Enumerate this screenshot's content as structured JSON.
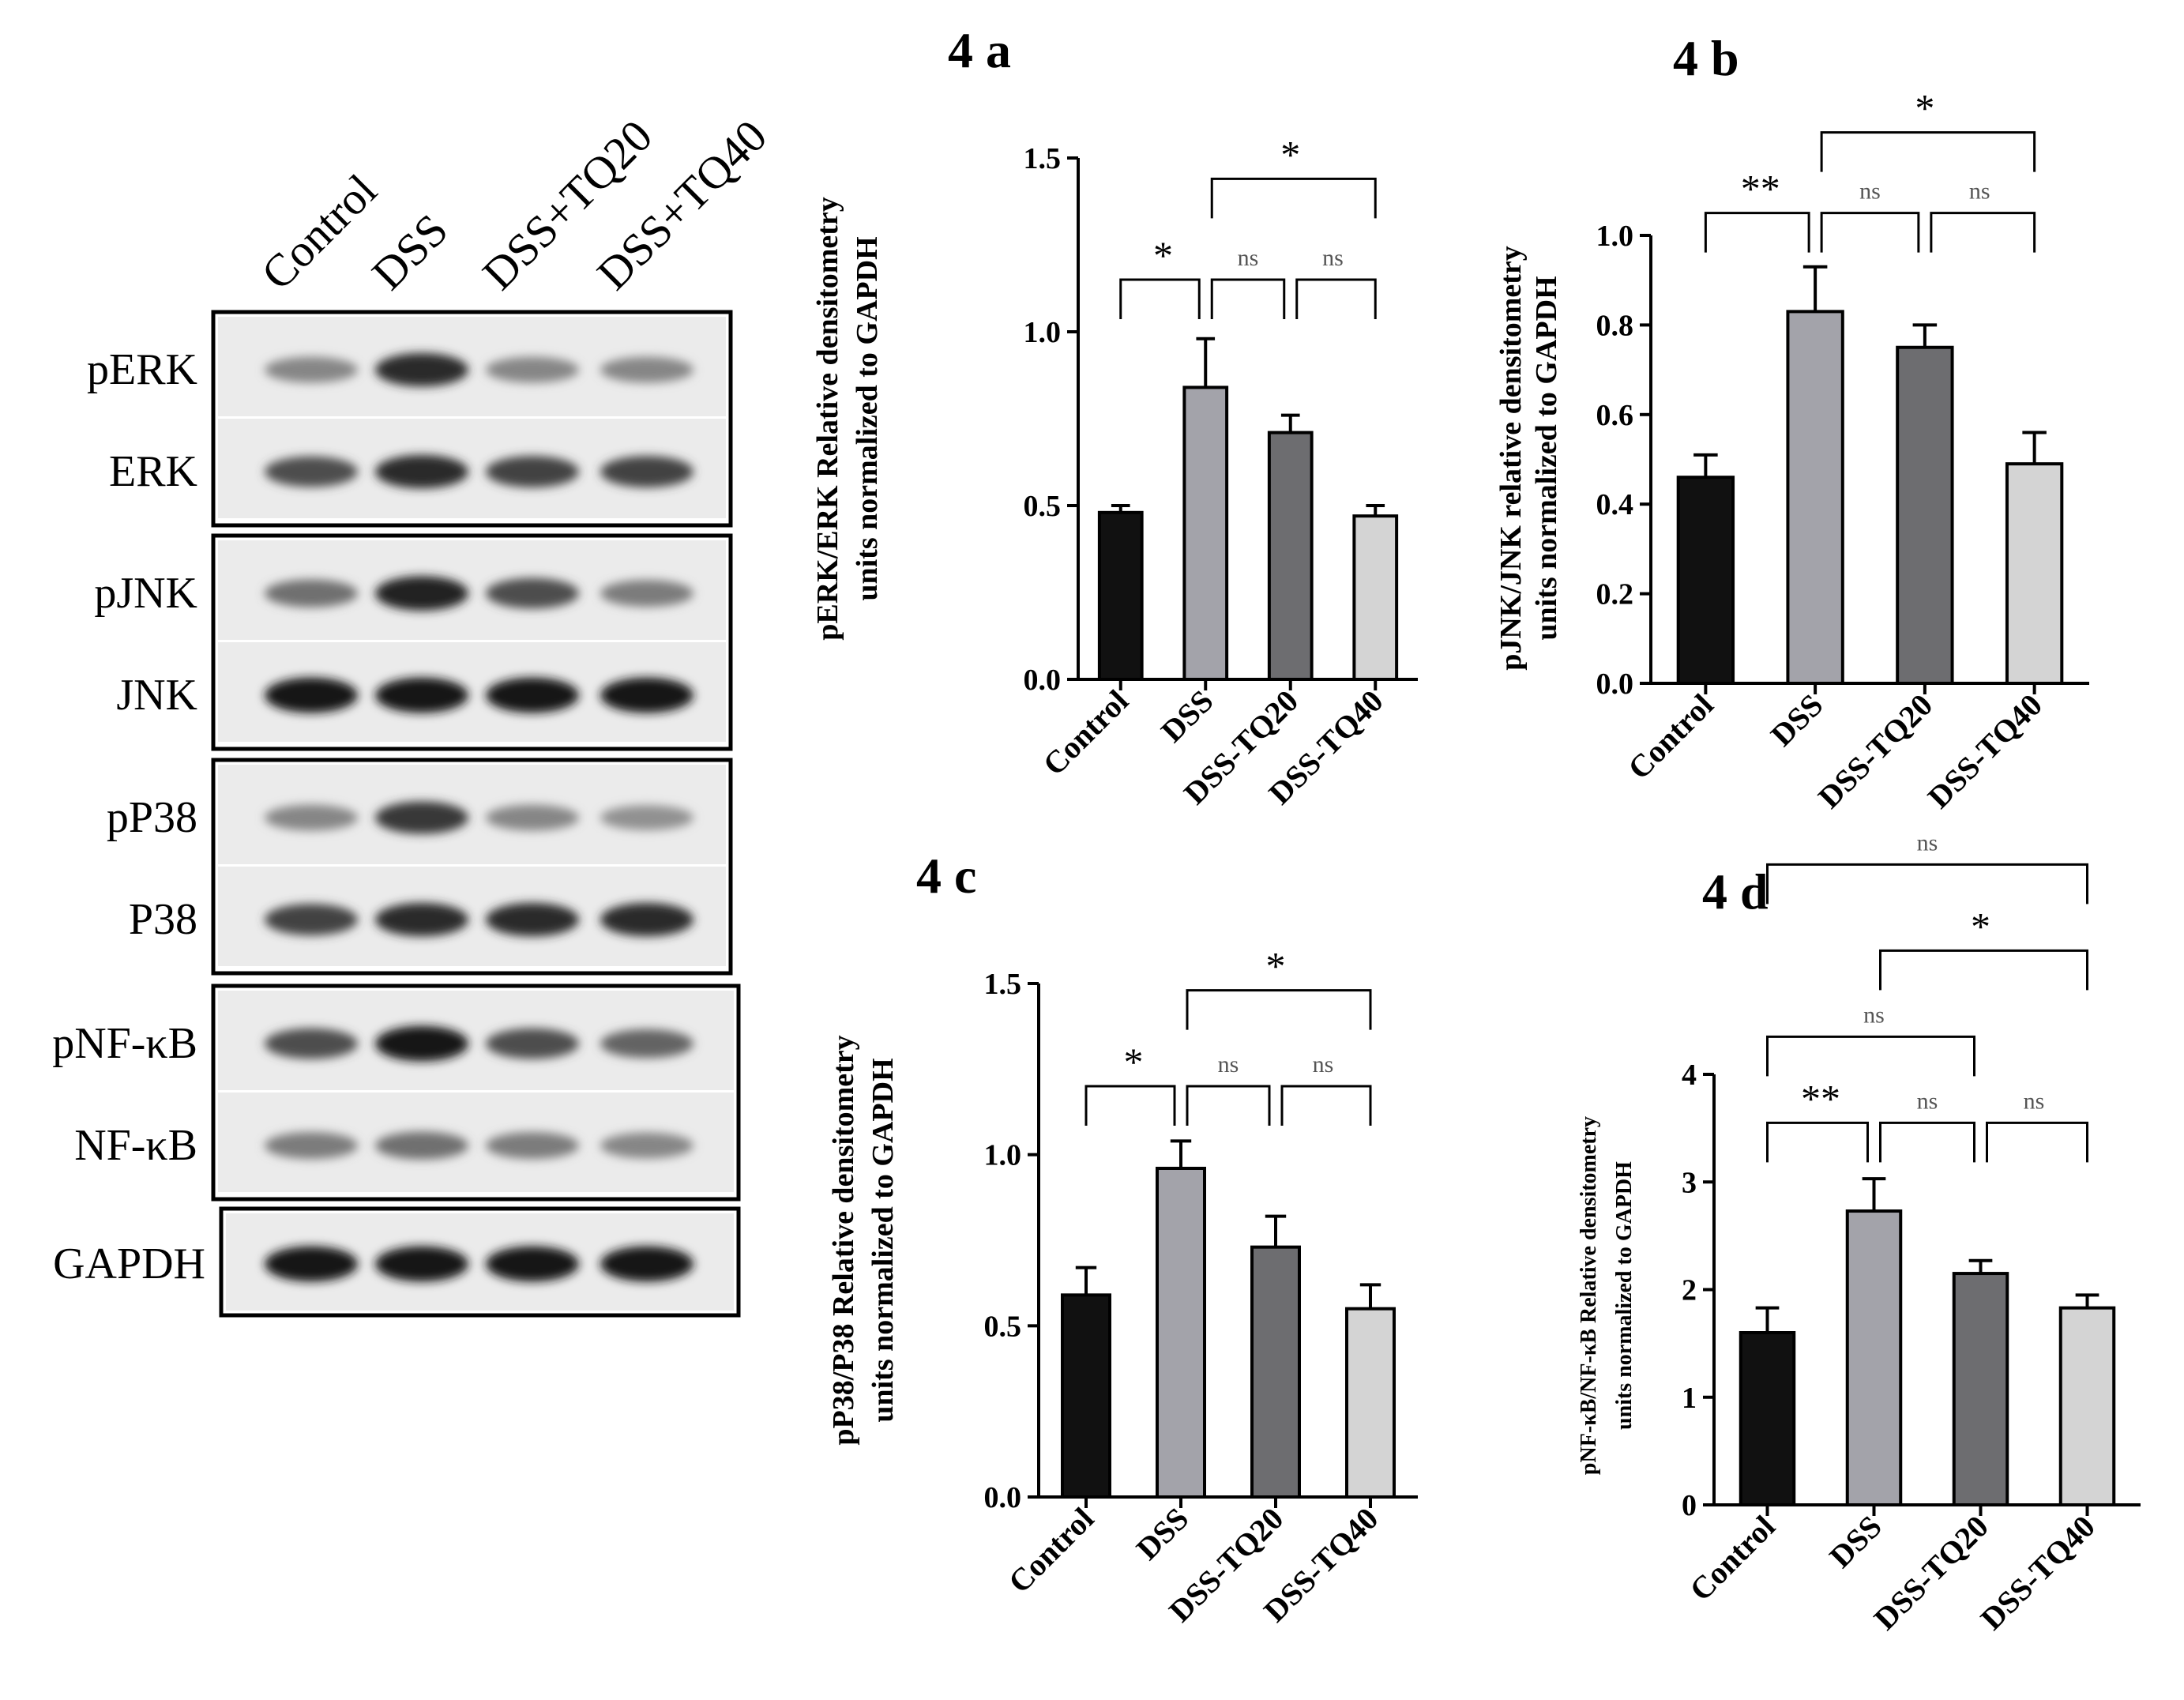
{
  "blot": {
    "lane_labels": [
      "Control",
      "DSS",
      "DSS+TQ20",
      "DSS+TQ40"
    ],
    "rows": [
      {
        "label": "pERK",
        "intensity": [
          0.45,
          0.85,
          0.45,
          0.45
        ]
      },
      {
        "label": "ERK",
        "intensity": [
          0.7,
          0.85,
          0.75,
          0.75
        ]
      },
      {
        "label": "pJNK",
        "intensity": [
          0.55,
          0.9,
          0.7,
          0.5
        ]
      },
      {
        "label": "JNK",
        "intensity": [
          0.95,
          0.95,
          0.95,
          0.95
        ]
      },
      {
        "label": "pP38",
        "intensity": [
          0.45,
          0.8,
          0.45,
          0.4
        ]
      },
      {
        "label": "P38",
        "intensity": [
          0.75,
          0.85,
          0.85,
          0.85
        ]
      },
      {
        "label": "pNF-κB",
        "intensity": [
          0.7,
          0.95,
          0.7,
          0.6
        ]
      },
      {
        "label": "NF-κB",
        "intensity": [
          0.5,
          0.55,
          0.5,
          0.45
        ]
      },
      {
        "label": "GAPDH",
        "intensity": [
          0.95,
          0.95,
          0.95,
          0.95
        ]
      }
    ]
  },
  "chart_data": [
    {
      "type": "bar",
      "title": "4 a",
      "ylabel_line1": "pERK/ERK Relative densitometry",
      "ylabel_line2": "units normalized to GAPDH",
      "categories": [
        "Control",
        "DSS",
        "DSS-TQ20",
        "DSS-TQ40"
      ],
      "values": [
        0.48,
        0.84,
        0.71,
        0.47
      ],
      "errors": [
        0.02,
        0.14,
        0.05,
        0.03
      ],
      "ylim": [
        0,
        1.5
      ],
      "yticks": [
        "0.0",
        "0.5",
        "1.0",
        "1.5"
      ],
      "bar_colors": [
        "#111111",
        "#a3a3aa",
        "#6d6d70",
        "#d4d4d4"
      ],
      "significance": [
        {
          "from": 0,
          "to": 1,
          "y": 1.15,
          "label": "*"
        },
        {
          "from": 1,
          "to": 2,
          "y": 1.15,
          "label": "ns"
        },
        {
          "from": 2,
          "to": 3,
          "y": 1.15,
          "label": "ns"
        },
        {
          "from": 1,
          "to": 3,
          "y": 1.44,
          "label": "*"
        }
      ]
    },
    {
      "type": "bar",
      "title": "4 b",
      "ylabel_line1": "pJNK/JNK relative densitometry",
      "ylabel_line2": "units normalized to GAPDH",
      "categories": [
        "Control",
        "DSS",
        "DSS-TQ20",
        "DSS-TQ40"
      ],
      "values": [
        0.46,
        0.83,
        0.75,
        0.49
      ],
      "errors": [
        0.05,
        0.1,
        0.05,
        0.07
      ],
      "ylim": [
        0,
        1.0
      ],
      "yticks": [
        "0.0",
        "0.2",
        "0.4",
        "0.6",
        "0.8",
        "1.0"
      ],
      "bar_colors": [
        "#111111",
        "#a3a3aa",
        "#6d6d70",
        "#d4d4d4"
      ],
      "significance": [
        {
          "from": 0,
          "to": 1,
          "y": 1.05,
          "label": "**"
        },
        {
          "from": 1,
          "to": 2,
          "y": 1.05,
          "label": "ns"
        },
        {
          "from": 2,
          "to": 3,
          "y": 1.05,
          "label": "ns"
        },
        {
          "from": 1,
          "to": 3,
          "y": 1.23,
          "label": "*"
        }
      ]
    },
    {
      "type": "bar",
      "title": "4 c",
      "ylabel_line1": "pP38/P38 Relative densitometry",
      "ylabel_line2": "units normalized to GAPDH",
      "categories": [
        "Control",
        "DSS",
        "DSS-TQ20",
        "DSS-TQ40"
      ],
      "values": [
        0.59,
        0.96,
        0.73,
        0.55
      ],
      "errors": [
        0.08,
        0.08,
        0.09,
        0.07
      ],
      "ylim": [
        0,
        1.5
      ],
      "yticks": [
        "0.0",
        "0.5",
        "1.0",
        "1.5"
      ],
      "bar_colors": [
        "#111111",
        "#a3a3aa",
        "#6d6d70",
        "#d4d4d4"
      ],
      "significance": [
        {
          "from": 0,
          "to": 1,
          "y": 1.2,
          "label": "*"
        },
        {
          "from": 1,
          "to": 2,
          "y": 1.2,
          "label": "ns"
        },
        {
          "from": 2,
          "to": 3,
          "y": 1.2,
          "label": "ns"
        },
        {
          "from": 1,
          "to": 3,
          "y": 1.48,
          "label": "*"
        }
      ]
    },
    {
      "type": "bar",
      "title": "4 d",
      "ylabel_line1": "pNF-κB/NF-κB Relative densitometry",
      "ylabel_line2": "units normalized to GAPDH",
      "categories": [
        "Control",
        "DSS",
        "DSS-TQ20",
        "DSS-TQ40"
      ],
      "values": [
        1.6,
        2.73,
        2.15,
        1.83
      ],
      "errors": [
        0.23,
        0.3,
        0.12,
        0.12
      ],
      "ylim": [
        0,
        4
      ],
      "yticks": [
        "0",
        "1",
        "2",
        "3",
        "4"
      ],
      "bar_colors": [
        "#111111",
        "#a3a3aa",
        "#6d6d70",
        "#d4d4d4"
      ],
      "significance": [
        {
          "from": 0,
          "to": 1,
          "y": 3.55,
          "label": "**"
        },
        {
          "from": 1,
          "to": 2,
          "y": 3.55,
          "label": "ns"
        },
        {
          "from": 2,
          "to": 3,
          "y": 3.55,
          "label": "ns"
        },
        {
          "from": 0,
          "to": 2,
          "y": 4.35,
          "label": "ns"
        },
        {
          "from": 1,
          "to": 3,
          "y": 5.15,
          "label": "*"
        },
        {
          "from": 0,
          "to": 3,
          "y": 5.95,
          "label": "ns"
        }
      ]
    }
  ]
}
